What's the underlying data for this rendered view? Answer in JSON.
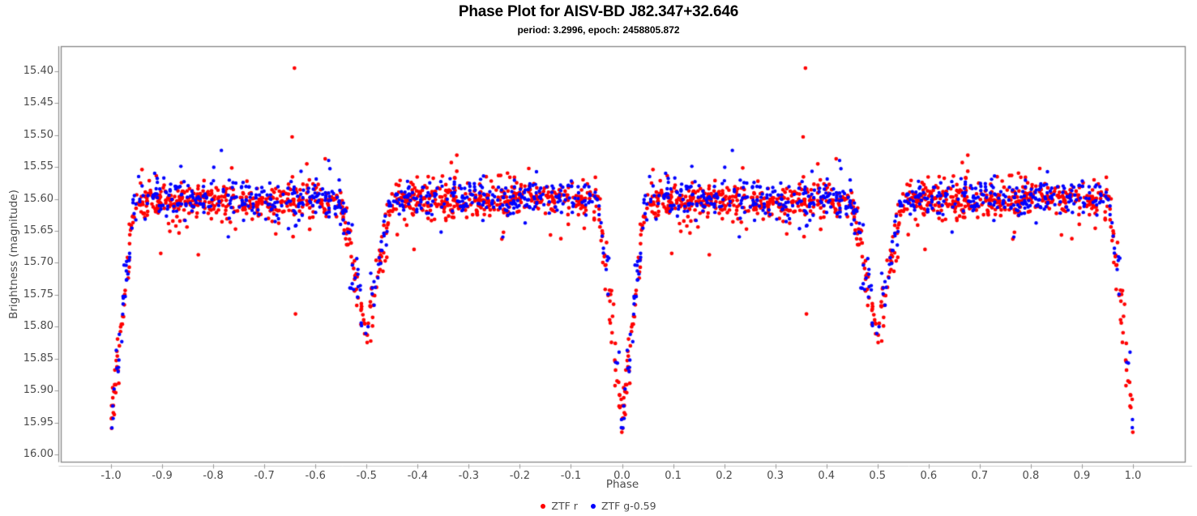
{
  "page": {
    "background": "#ffffff"
  },
  "chart_data": {
    "type": "scatter",
    "title": "Phase Plot for AISV-BD J82.347+32.646",
    "subtitle": "period: 3.2996, epoch: 2458805.872",
    "xlabel": "Phase",
    "ylabel": "Brightness (magnitude)",
    "grid": false,
    "legend_position": "bottom-center",
    "x_axis": {
      "min": -1.0,
      "max": 1.0,
      "tick_values": [
        -1.0,
        -0.9,
        -0.8,
        -0.7,
        -0.6,
        -0.5,
        -0.4,
        -0.3,
        -0.2,
        -0.1,
        0.0,
        0.1,
        0.2,
        0.3,
        0.4,
        0.5,
        0.6,
        0.7,
        0.8,
        0.9,
        1.0
      ],
      "tick_labels": [
        "-1.0",
        "-0.9",
        "-0.8",
        "-0.7",
        "-0.6",
        "-0.5",
        "-0.4",
        "-0.3",
        "-0.2",
        "-0.1",
        "0.0",
        "0.1",
        "0.2",
        "0.3",
        "0.4",
        "0.5",
        "0.6",
        "0.7",
        "0.8",
        "0.9",
        "1.0"
      ]
    },
    "y_axis": {
      "min": 15.4,
      "max": 16.0,
      "inverted": true,
      "tick_values": [
        15.4,
        15.45,
        15.5,
        15.55,
        15.6,
        15.65,
        15.7,
        15.75,
        15.8,
        15.85,
        15.9,
        15.95,
        16.0
      ],
      "tick_labels": [
        "15.40",
        "15.45",
        "15.50",
        "15.55",
        "15.60",
        "15.65",
        "15.70",
        "15.75",
        "15.80",
        "15.85",
        "15.90",
        "15.95",
        "16.00"
      ]
    },
    "series": [
      {
        "name": "ZTF r",
        "color": "#ff0000",
        "n_obs": 950,
        "baseline_mag": 15.604,
        "core_sigma_mag": 0.013,
        "marker_radius_px": 2.35
      },
      {
        "name": "ZTF g-0.59",
        "color": "#0000ff",
        "n_obs": 580,
        "baseline_mag": 15.598,
        "core_sigma_mag": 0.013,
        "marker_radius_px": 2.2
      }
    ],
    "light_curve_model": {
      "kind": "eclipsing-binary",
      "phase_range_plotted": [
        -1.0,
        1.0
      ],
      "duplicated_phase_copies": true,
      "baseline_mag": 15.6,
      "primary_eclipse": {
        "center_phase": 0.0,
        "depth_mag": 0.36,
        "half_width_phase": 0.048,
        "min_mag": 15.96
      },
      "secondary_eclipse": {
        "center_phase": 0.5,
        "depth_mag": 0.215,
        "half_width_phase": 0.052,
        "min_mag": 15.815
      },
      "profile_exponent": 1.15
    },
    "outlier_points": [
      {
        "series": "ZTF r",
        "phase": 0.359,
        "mag": 15.395
      },
      {
        "series": "ZTF r",
        "phase": 0.361,
        "mag": 15.78
      },
      {
        "series": "ZTF r",
        "phase": 0.593,
        "mag": 15.679
      }
    ],
    "axis_colors": {
      "frame": "#848484",
      "y_axis_line": "#8a8a8a",
      "x_axis_line": "#cdcdcd",
      "tick_mark": "#9a9a9a",
      "tick_text": "#4b4b4b"
    },
    "random_seed": 7
  }
}
